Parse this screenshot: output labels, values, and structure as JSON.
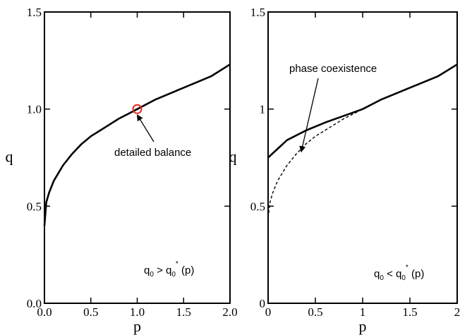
{
  "chart_data": [
    {
      "type": "line",
      "title": "",
      "xlabel": "p",
      "ylabel": "q",
      "xlim": [
        0,
        2
      ],
      "ylim": [
        0,
        1.5
      ],
      "x_ticks": [
        0,
        0.5,
        1,
        1.5,
        2
      ],
      "x_tick_labels": [
        "0.0",
        "0.5",
        "1.0",
        "1.5",
        "2.0"
      ],
      "y_ticks": [
        0,
        0.5,
        1,
        1.5
      ],
      "y_tick_labels": [
        "0.0",
        "0.5",
        "1.0",
        "1.5"
      ],
      "series": [
        {
          "style": "solid",
          "x": [
            0.0,
            0.02,
            0.05,
            0.1,
            0.2,
            0.3,
            0.4,
            0.5,
            0.6,
            0.7,
            0.8,
            0.9,
            1.0,
            1.2,
            1.4,
            1.6,
            1.8,
            2.0
          ],
          "y": [
            0.4,
            0.52,
            0.57,
            0.63,
            0.71,
            0.77,
            0.82,
            0.86,
            0.89,
            0.92,
            0.95,
            0.975,
            1.0,
            1.05,
            1.09,
            1.13,
            1.17,
            1.23
          ]
        }
      ],
      "markers": [
        {
          "x": 1.0,
          "y": 1.0,
          "shape": "open-circle",
          "color": "#e8281e"
        }
      ],
      "annotations": [
        {
          "text": "detailed balance",
          "arrow_to": {
            "x": 1.0,
            "y": 0.97
          }
        }
      ],
      "condition": {
        "lhs": "q",
        "lhs_sub": "0",
        "op": ">",
        "rhs": "q",
        "rhs_sub": "0",
        "rhs_sup": "*",
        "arg": "(p)"
      }
    },
    {
      "type": "line",
      "title": "",
      "xlabel": "p",
      "ylabel": "q",
      "xlim": [
        0,
        2
      ],
      "ylim": [
        0,
        1.5
      ],
      "x_ticks": [
        0,
        0.5,
        1,
        1.5,
        2
      ],
      "x_tick_labels": [
        "0",
        "0.5",
        "1",
        "1.5",
        "2"
      ],
      "y_ticks": [
        0,
        0.5,
        1,
        1.5
      ],
      "y_tick_labels": [
        "0",
        "0.5",
        "1",
        "1.5"
      ],
      "series": [
        {
          "style": "solid",
          "x": [
            0.0,
            0.2,
            0.4,
            0.6,
            0.8,
            1.0,
            1.2,
            1.4,
            1.6,
            1.8,
            2.0
          ],
          "y": [
            0.75,
            0.84,
            0.89,
            0.93,
            0.965,
            1.0,
            1.05,
            1.09,
            1.13,
            1.17,
            1.23
          ]
        },
        {
          "style": "dashed",
          "x": [
            0.0,
            0.02,
            0.05,
            0.1,
            0.2,
            0.3,
            0.4,
            0.5,
            0.6,
            0.7,
            0.8,
            0.9,
            1.0
          ],
          "y": [
            0.44,
            0.52,
            0.57,
            0.63,
            0.71,
            0.77,
            0.82,
            0.86,
            0.89,
            0.92,
            0.95,
            0.975,
            1.0
          ]
        }
      ],
      "annotations": [
        {
          "text": "phase coexistence",
          "arrow_to": {
            "x": 0.35,
            "y": 0.78
          }
        }
      ],
      "condition": {
        "lhs": "q",
        "lhs_sub": "0",
        "op": "<",
        "rhs": "q",
        "rhs_sub": "0",
        "rhs_sup": "*",
        "arg": "(p)"
      }
    }
  ]
}
